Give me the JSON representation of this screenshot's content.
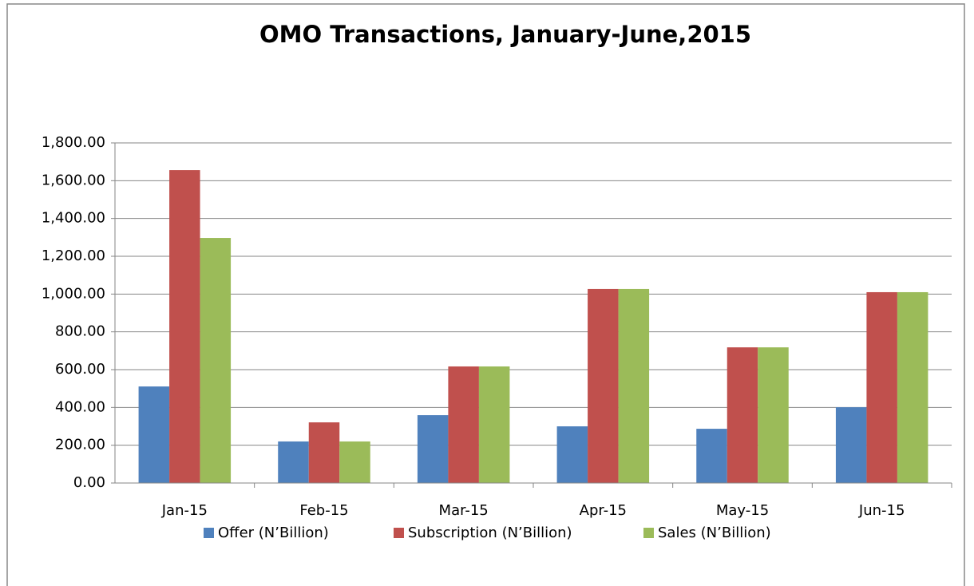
{
  "chart_data": {
    "type": "bar",
    "title": "OMO Transactions, January-June,2015",
    "categories": [
      "Jan-15",
      "Feb-15",
      "Mar-15",
      "Apr-15",
      "May-15",
      "Jun-15"
    ],
    "series": [
      {
        "name": "Offer (N’Billion)",
        "color": "#4f81bd",
        "values": [
          511,
          220,
          359,
          300,
          287,
          401
        ]
      },
      {
        "name": "Subscription (N’Billion)",
        "color": "#c0504d",
        "values": [
          1656,
          321,
          617,
          1027,
          718,
          1010
        ]
      },
      {
        "name": "Sales (N’Billion)",
        "color": "#9bbb59",
        "values": [
          1297,
          220,
          617,
          1027,
          718,
          1010
        ]
      }
    ],
    "ylim": [
      0,
      1800
    ],
    "yticks": [
      {
        "value": 0,
        "label": "0.00"
      },
      {
        "value": 200,
        "label": "200.00"
      },
      {
        "value": 400,
        "label": "400.00"
      },
      {
        "value": 600,
        "label": "600.00"
      },
      {
        "value": 800,
        "label": "800.00"
      },
      {
        "value": 1000,
        "label": "1,000.00"
      },
      {
        "value": 1200,
        "label": "1,200.00"
      },
      {
        "value": 1400,
        "label": "1,400.00"
      },
      {
        "value": 1600,
        "label": "1,600.00"
      },
      {
        "value": 1800,
        "label": "1,800.00"
      }
    ],
    "grid": true,
    "legend": "bottom"
  }
}
